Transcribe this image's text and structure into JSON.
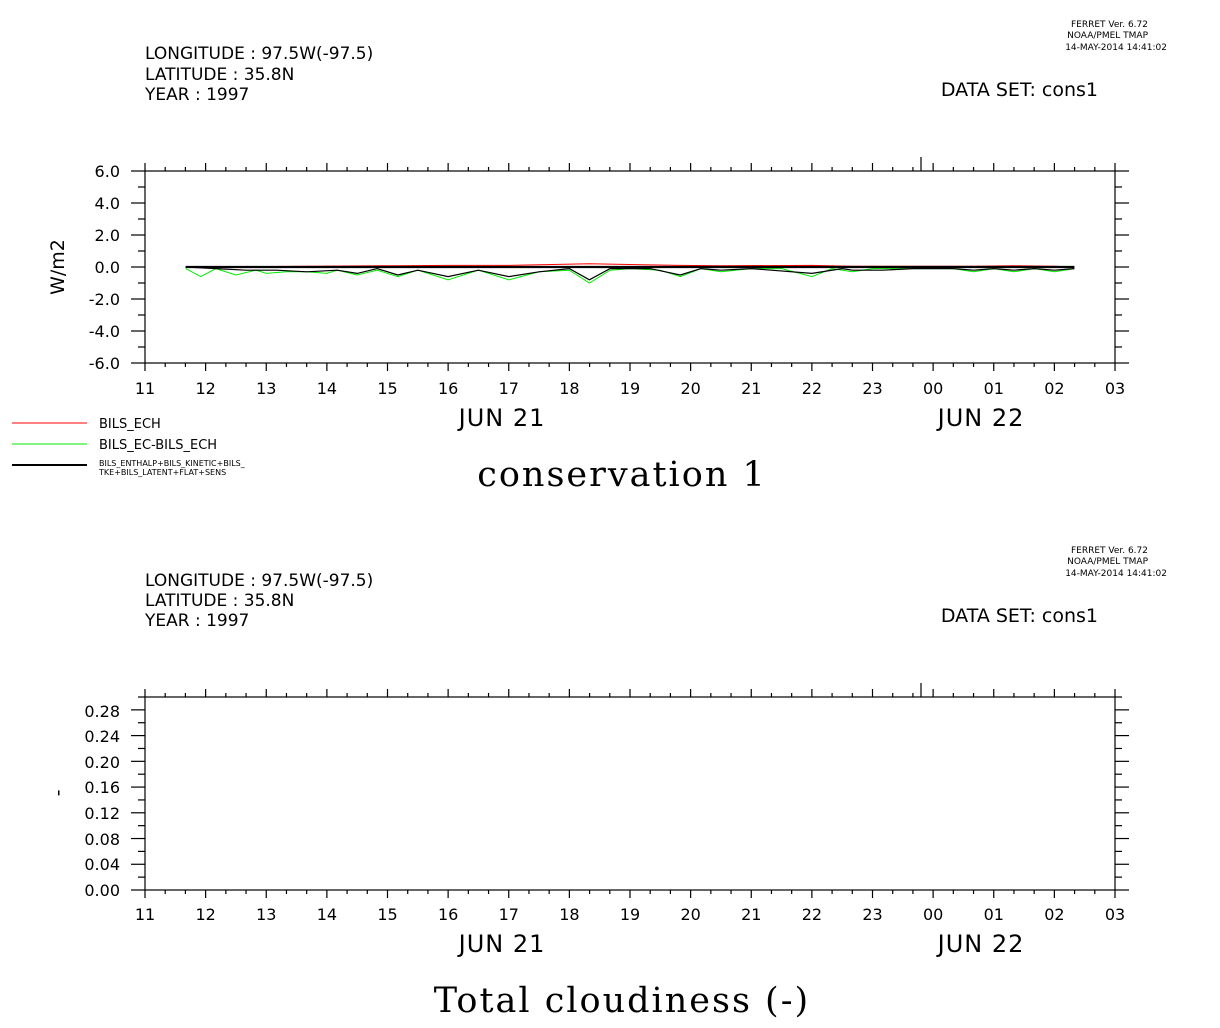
{
  "panels": [
    {
      "ferret": {
        "line1": "FERRET Ver. 6.72",
        "line2": "NOAA/PMEL TMAP",
        "line3": "14-MAY-2014 14:41:02"
      },
      "header": {
        "longitude": "LONGITUDE : 97.5W(-97.5)",
        "latitude": "LATITUDE : 35.8N",
        "year": "YEAR : 1997"
      },
      "dataset": "DATA SET: cons1",
      "title": "conservation 1",
      "ylabel": "W/m2",
      "yticks": [
        "6.0",
        "4.0",
        "2.0",
        "0.0",
        "-2.0",
        "-4.0",
        "-6.0"
      ],
      "xticks": [
        "11",
        "12",
        "13",
        "14",
        "15",
        "16",
        "17",
        "18",
        "19",
        "20",
        "21",
        "22",
        "23",
        "00",
        "01",
        "02",
        "03"
      ],
      "date_labels": [
        "JUN 21",
        "JUN 22"
      ],
      "legend": [
        "BILS_ECH",
        "BILS_EC-BILS_ECH",
        "BILS_ENTHALP+BILS_KINETIC+BILS_",
        "TKE+BILS_LATENT+FLAT+SENS"
      ]
    },
    {
      "ferret": {
        "line1": "FERRET Ver. 6.72",
        "line2": "NOAA/PMEL TMAP",
        "line3": "14-MAY-2014 14:41:02"
      },
      "header": {
        "longitude": "LONGITUDE : 97.5W(-97.5)",
        "latitude": "LATITUDE : 35.8N",
        "year": "YEAR : 1997"
      },
      "dataset": "DATA SET: cons1",
      "title": "Total cloudiness (-)",
      "ylabel": "-",
      "yticks": [
        "0.28",
        "0.24",
        "0.20",
        "0.16",
        "0.12",
        "0.08",
        "0.04",
        "0.00"
      ],
      "xticks": [
        "11",
        "12",
        "13",
        "14",
        "15",
        "16",
        "17",
        "18",
        "19",
        "20",
        "21",
        "22",
        "23",
        "00",
        "01",
        "02",
        "03"
      ],
      "date_labels": [
        "JUN 21",
        "JUN 22"
      ]
    }
  ],
  "chart_data": [
    {
      "type": "line",
      "title": "conservation 1",
      "ylabel": "W/m2",
      "xlabel": "",
      "ylim": [
        -6,
        6
      ],
      "x_unit": "hour (JUN 21 11:00 to JUN 22 03:00)",
      "xlim": [
        11,
        27
      ],
      "colors": {
        "BILS_ECH": "#ff0000",
        "BILS_EC-BILS_ECH": "#00ee00",
        "sum": "#000000"
      },
      "series": [
        {
          "name": "BILS_ECH",
          "x": [
            11.67,
            15.17,
            16.0,
            17.0,
            18.33,
            19.83,
            20.5,
            22.0,
            22.67,
            23.17,
            24.67,
            25.33,
            26.0,
            26.33
          ],
          "values": [
            0.0,
            0.08,
            0.1,
            0.1,
            0.2,
            0.1,
            0.08,
            0.1,
            0.05,
            0.05,
            0.05,
            0.08,
            0.05,
            0.0
          ]
        },
        {
          "name": "BILS_EC-BILS_ECH",
          "x": [
            11.67,
            11.92,
            12.17,
            12.5,
            12.83,
            13.0,
            13.33,
            13.67,
            14.0,
            14.17,
            14.5,
            14.83,
            15.17,
            15.5,
            16.0,
            16.5,
            17.0,
            17.5,
            18.0,
            18.33,
            18.67,
            19.0,
            19.5,
            19.83,
            20.17,
            20.5,
            21.0,
            21.5,
            22.0,
            22.33,
            22.67,
            23.0,
            23.5,
            24.0,
            24.33,
            24.67,
            25.0,
            25.33,
            25.67,
            26.0,
            26.33
          ],
          "values": [
            -0.1,
            -0.6,
            -0.1,
            -0.5,
            -0.2,
            -0.4,
            -0.3,
            -0.3,
            -0.4,
            -0.2,
            -0.5,
            -0.2,
            -0.6,
            -0.2,
            -0.8,
            -0.2,
            -0.8,
            -0.3,
            -0.2,
            -1.0,
            -0.2,
            -0.1,
            -0.2,
            -0.6,
            -0.1,
            -0.3,
            -0.1,
            -0.1,
            -0.6,
            -0.1,
            -0.3,
            -0.1,
            -0.1,
            -0.1,
            -0.1,
            -0.3,
            -0.1,
            -0.3,
            -0.1,
            -0.3,
            -0.1
          ]
        },
        {
          "name": "BILS_ENTHALP+BILS_KINETIC+BILS_TKE+BILS_LATENT+FLAT+SENS",
          "x": [
            11.67,
            12.17,
            12.67,
            13.17,
            13.67,
            14.17,
            14.5,
            14.83,
            15.17,
            15.5,
            16.0,
            16.5,
            17.0,
            17.5,
            18.0,
            18.33,
            18.67,
            19.33,
            19.83,
            20.17,
            20.5,
            21.0,
            22.0,
            22.5,
            22.67,
            23.17,
            23.67,
            24.0,
            24.33,
            24.67,
            25.0,
            25.33,
            25.67,
            26.0,
            26.33
          ],
          "values": [
            0.0,
            -0.1,
            -0.2,
            -0.2,
            -0.3,
            -0.2,
            -0.4,
            -0.1,
            -0.5,
            -0.2,
            -0.6,
            -0.2,
            -0.6,
            -0.3,
            -0.1,
            -0.8,
            -0.1,
            -0.1,
            -0.5,
            -0.1,
            -0.2,
            -0.1,
            -0.4,
            -0.1,
            -0.2,
            -0.2,
            -0.1,
            -0.1,
            -0.1,
            -0.2,
            -0.1,
            -0.2,
            -0.1,
            -0.2,
            -0.1
          ]
        }
      ]
    },
    {
      "type": "line",
      "title": "Total cloudiness (-)",
      "ylabel": "-",
      "xlabel": "",
      "ylim": [
        0,
        0.3
      ],
      "x_unit": "hour (JUN 21 11:00 to JUN 22 03:00)",
      "xlim": [
        11,
        27
      ],
      "series": []
    }
  ]
}
